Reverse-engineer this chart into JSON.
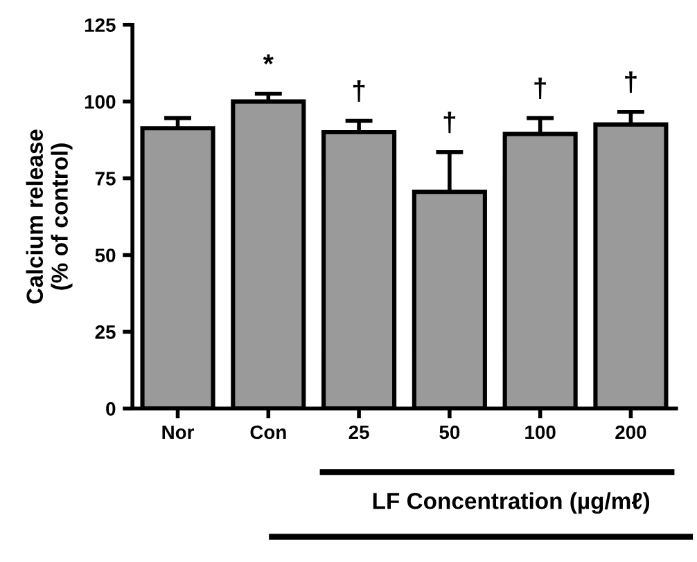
{
  "chart_data": {
    "type": "bar",
    "xlabel": "LF Concentration (µg/mℓ)",
    "ylabel": "Calcium release\n(% of control)",
    "categories": [
      "Nor",
      "Con",
      "25",
      "50",
      "100",
      "200"
    ],
    "values": [
      91.3,
      100,
      90,
      70.6,
      89.4,
      92.5
    ],
    "errors": [
      3.3,
      2.5,
      3.7,
      12.9,
      5.2,
      4.1
    ],
    "color": "#9a9a9a",
    "ylim": [
      0,
      125
    ],
    "yticks": [
      0,
      25,
      50,
      75,
      100,
      125
    ],
    "grid": false,
    "annotations": [
      "*",
      "†",
      "†",
      "†",
      "†"
    ]
  }
}
